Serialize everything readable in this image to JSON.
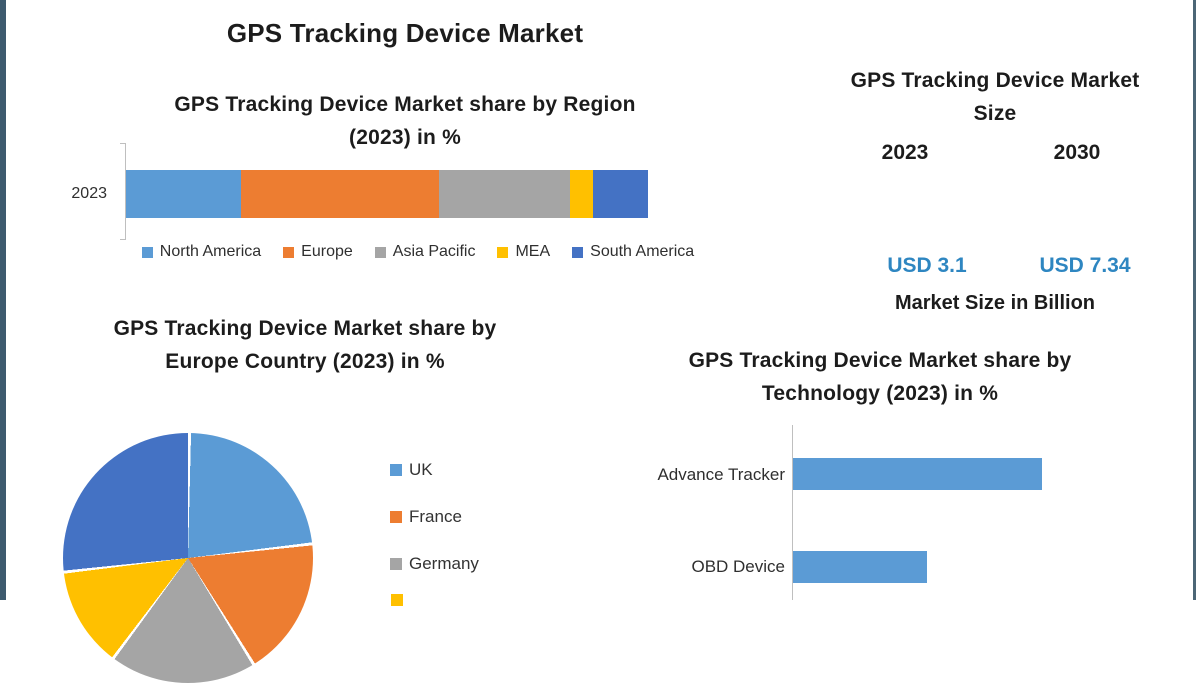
{
  "page": {
    "main_title": "GPS Tracking Device Market",
    "frame_color": "#3d5a6e",
    "background": "#ffffff"
  },
  "region_section": {
    "title_lines": [
      "GPS Tracking Device Market share by Region",
      "(2023) in %"
    ],
    "axis_category": "2023"
  },
  "market_size_section": {
    "title_lines": [
      "GPS Tracking Device Market",
      "Size"
    ],
    "years": [
      "2023",
      "2030"
    ],
    "values": [
      "USD 3.1",
      "USD 7.34"
    ],
    "caption": "Market Size in Billion",
    "value_color": "#2e86c1"
  },
  "europe_section": {
    "title_lines": [
      "GPS Tracking Device Market share by",
      "Europe Country (2023) in %"
    ],
    "visible_legend_labels": [
      "UK",
      "France",
      "Germany"
    ]
  },
  "technology_section": {
    "title_lines": [
      "GPS Tracking Device Market share by",
      "Technology (2023) in %"
    ]
  },
  "chart_data": [
    {
      "type": "bar",
      "subtype": "stacked-horizontal",
      "title": "GPS Tracking Device Market share by Region (2023) in %",
      "categories": [
        "2023"
      ],
      "unit": "%",
      "legend_position": "bottom",
      "series": [
        {
          "name": "North America",
          "values": [
            22
          ],
          "color": "#5b9bd5"
        },
        {
          "name": "Europe",
          "values": [
            38
          ],
          "color": "#ed7d31"
        },
        {
          "name": "Asia Pacific",
          "values": [
            25
          ],
          "color": "#a5a5a5"
        },
        {
          "name": "MEA",
          "values": [
            4.5
          ],
          "color": "#ffc000"
        },
        {
          "name": "South America",
          "values": [
            10.5
          ],
          "color": "#4472c4"
        }
      ]
    },
    {
      "type": "table",
      "title": "GPS Tracking Device Market Size",
      "columns": [
        "2023",
        "2030"
      ],
      "values": [
        "USD 3.1",
        "USD 7.34"
      ],
      "caption": "Market Size in Billion"
    },
    {
      "type": "pie",
      "title": "GPS Tracking Device Market share by Europe Country (2023) in %",
      "unit": "%",
      "legend_position": "right",
      "slices": [
        {
          "label": "UK",
          "value": 23,
          "color": "#5b9bd5"
        },
        {
          "label": "France",
          "value": 18,
          "color": "#ed7d31"
        },
        {
          "label": "Germany",
          "value": 19,
          "color": "#a5a5a5"
        },
        {
          "label": "",
          "value": 13,
          "color": "#ffc000"
        },
        {
          "label": "",
          "value": 27,
          "color": "#4472c4"
        }
      ]
    },
    {
      "type": "bar",
      "subtype": "horizontal",
      "title": "GPS Tracking Device Market share by Technology (2023) in %",
      "categories": [
        "Advance Tracker",
        "OBD Device"
      ],
      "values": [
        65,
        35
      ],
      "unit": "%",
      "color": "#5b9bd5"
    }
  ]
}
